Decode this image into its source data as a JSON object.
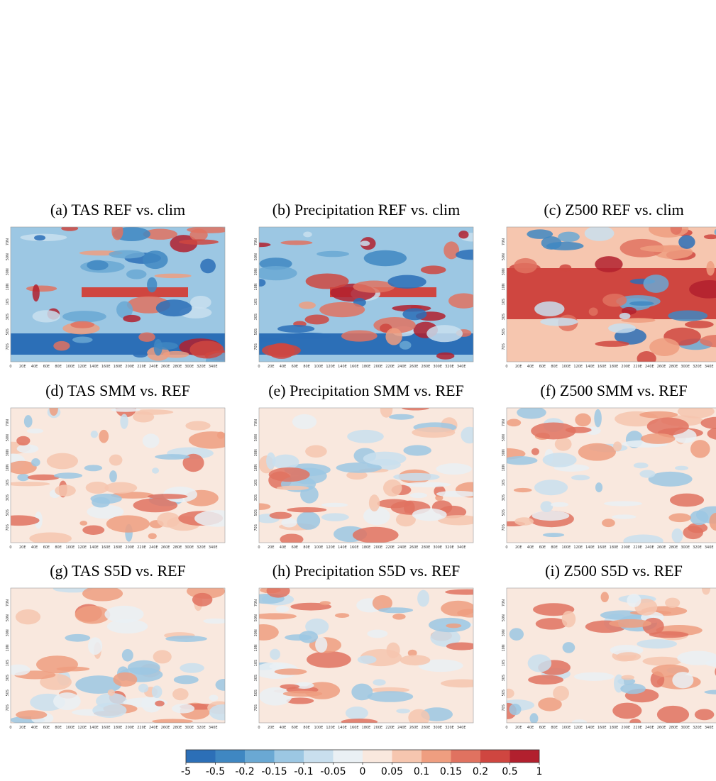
{
  "panels": [
    {
      "title": "(a) TAS REF vs. clim"
    },
    {
      "title": "(b) Precipitation REF vs. clim"
    },
    {
      "title": "(c) Z500 REF vs. clim"
    },
    {
      "title": "(d) TAS SMM vs. REF"
    },
    {
      "title": "(e) Precipitation SMM vs. REF"
    },
    {
      "title": "(f) Z500 SMM vs. REF"
    },
    {
      "title": "(g) TAS S5D vs. REF"
    },
    {
      "title": "(h) Precipitation S5D vs. REF"
    },
    {
      "title": "(i) Z500 S5D vs. REF"
    }
  ],
  "map_axes": {
    "x_ticks": [
      "0",
      "20E",
      "40E",
      "60E",
      "80E",
      "100E",
      "120E",
      "140E",
      "160E",
      "180E",
      "200E",
      "220E",
      "240E",
      "260E",
      "280E",
      "300E",
      "320E",
      "340E"
    ],
    "y_ticks": [
      "70N",
      "50N",
      "30N",
      "10N",
      "10S",
      "30S",
      "50S",
      "70S"
    ]
  },
  "colorbar": {
    "ticks": [
      -5,
      -0.5,
      -0.2,
      -0.15,
      -0.1,
      -0.05,
      0,
      0.05,
      0.1,
      0.15,
      0.2,
      0.5,
      1
    ],
    "colors": [
      "#2c6fb7",
      "#3f87c2",
      "#6aa8d3",
      "#9cc7e3",
      "#c9dfee",
      "#eaf0f4",
      "#f9e8de",
      "#f6c6af",
      "#ef9e80",
      "#e07260",
      "#cf4640",
      "#b2202e"
    ]
  }
}
